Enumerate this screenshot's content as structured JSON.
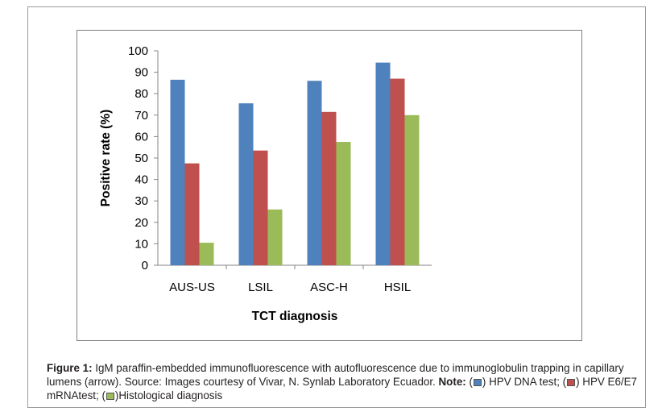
{
  "chart_data": {
    "type": "bar",
    "title": "",
    "xlabel": "TCT diagnosis",
    "ylabel": "Positive rate   (%)",
    "ylim": [
      0,
      100
    ],
    "yticks": [
      0,
      10,
      20,
      30,
      40,
      50,
      60,
      70,
      80,
      90,
      100
    ],
    "grid": false,
    "categories": [
      "AUS-US",
      "LSIL",
      "ASC-H",
      "HSIL"
    ],
    "series": [
      {
        "name": "HPV DNA test",
        "color": "#4f81bd",
        "values": [
          86.5,
          75.5,
          86,
          94.5
        ]
      },
      {
        "name": "HPV E6/E7 mRNAtest",
        "color": "#c0504d",
        "values": [
          47.5,
          53.5,
          71.5,
          87
        ]
      },
      {
        "name": "Histological diagnosis",
        "color": "#9bbb59",
        "values": [
          10.5,
          26,
          57.5,
          70
        ]
      }
    ]
  },
  "caption": {
    "figure_label": "Figure 1:",
    "text": " IgM paraffin-embedded immunofluorescence with autofluorescence due to immunoglobulin trapping in capillary lumens (arrow). Source: Images courtesy of Vivar, N. Synlab Laboratory Ecuador. ",
    "note_label": "Note:",
    "open1": " (",
    "legend1": ") HPV DNA test;  (",
    "legend2": ") HPV E6/E7 mRNAtest; (",
    "legend3": ")Histological diagnosis"
  }
}
